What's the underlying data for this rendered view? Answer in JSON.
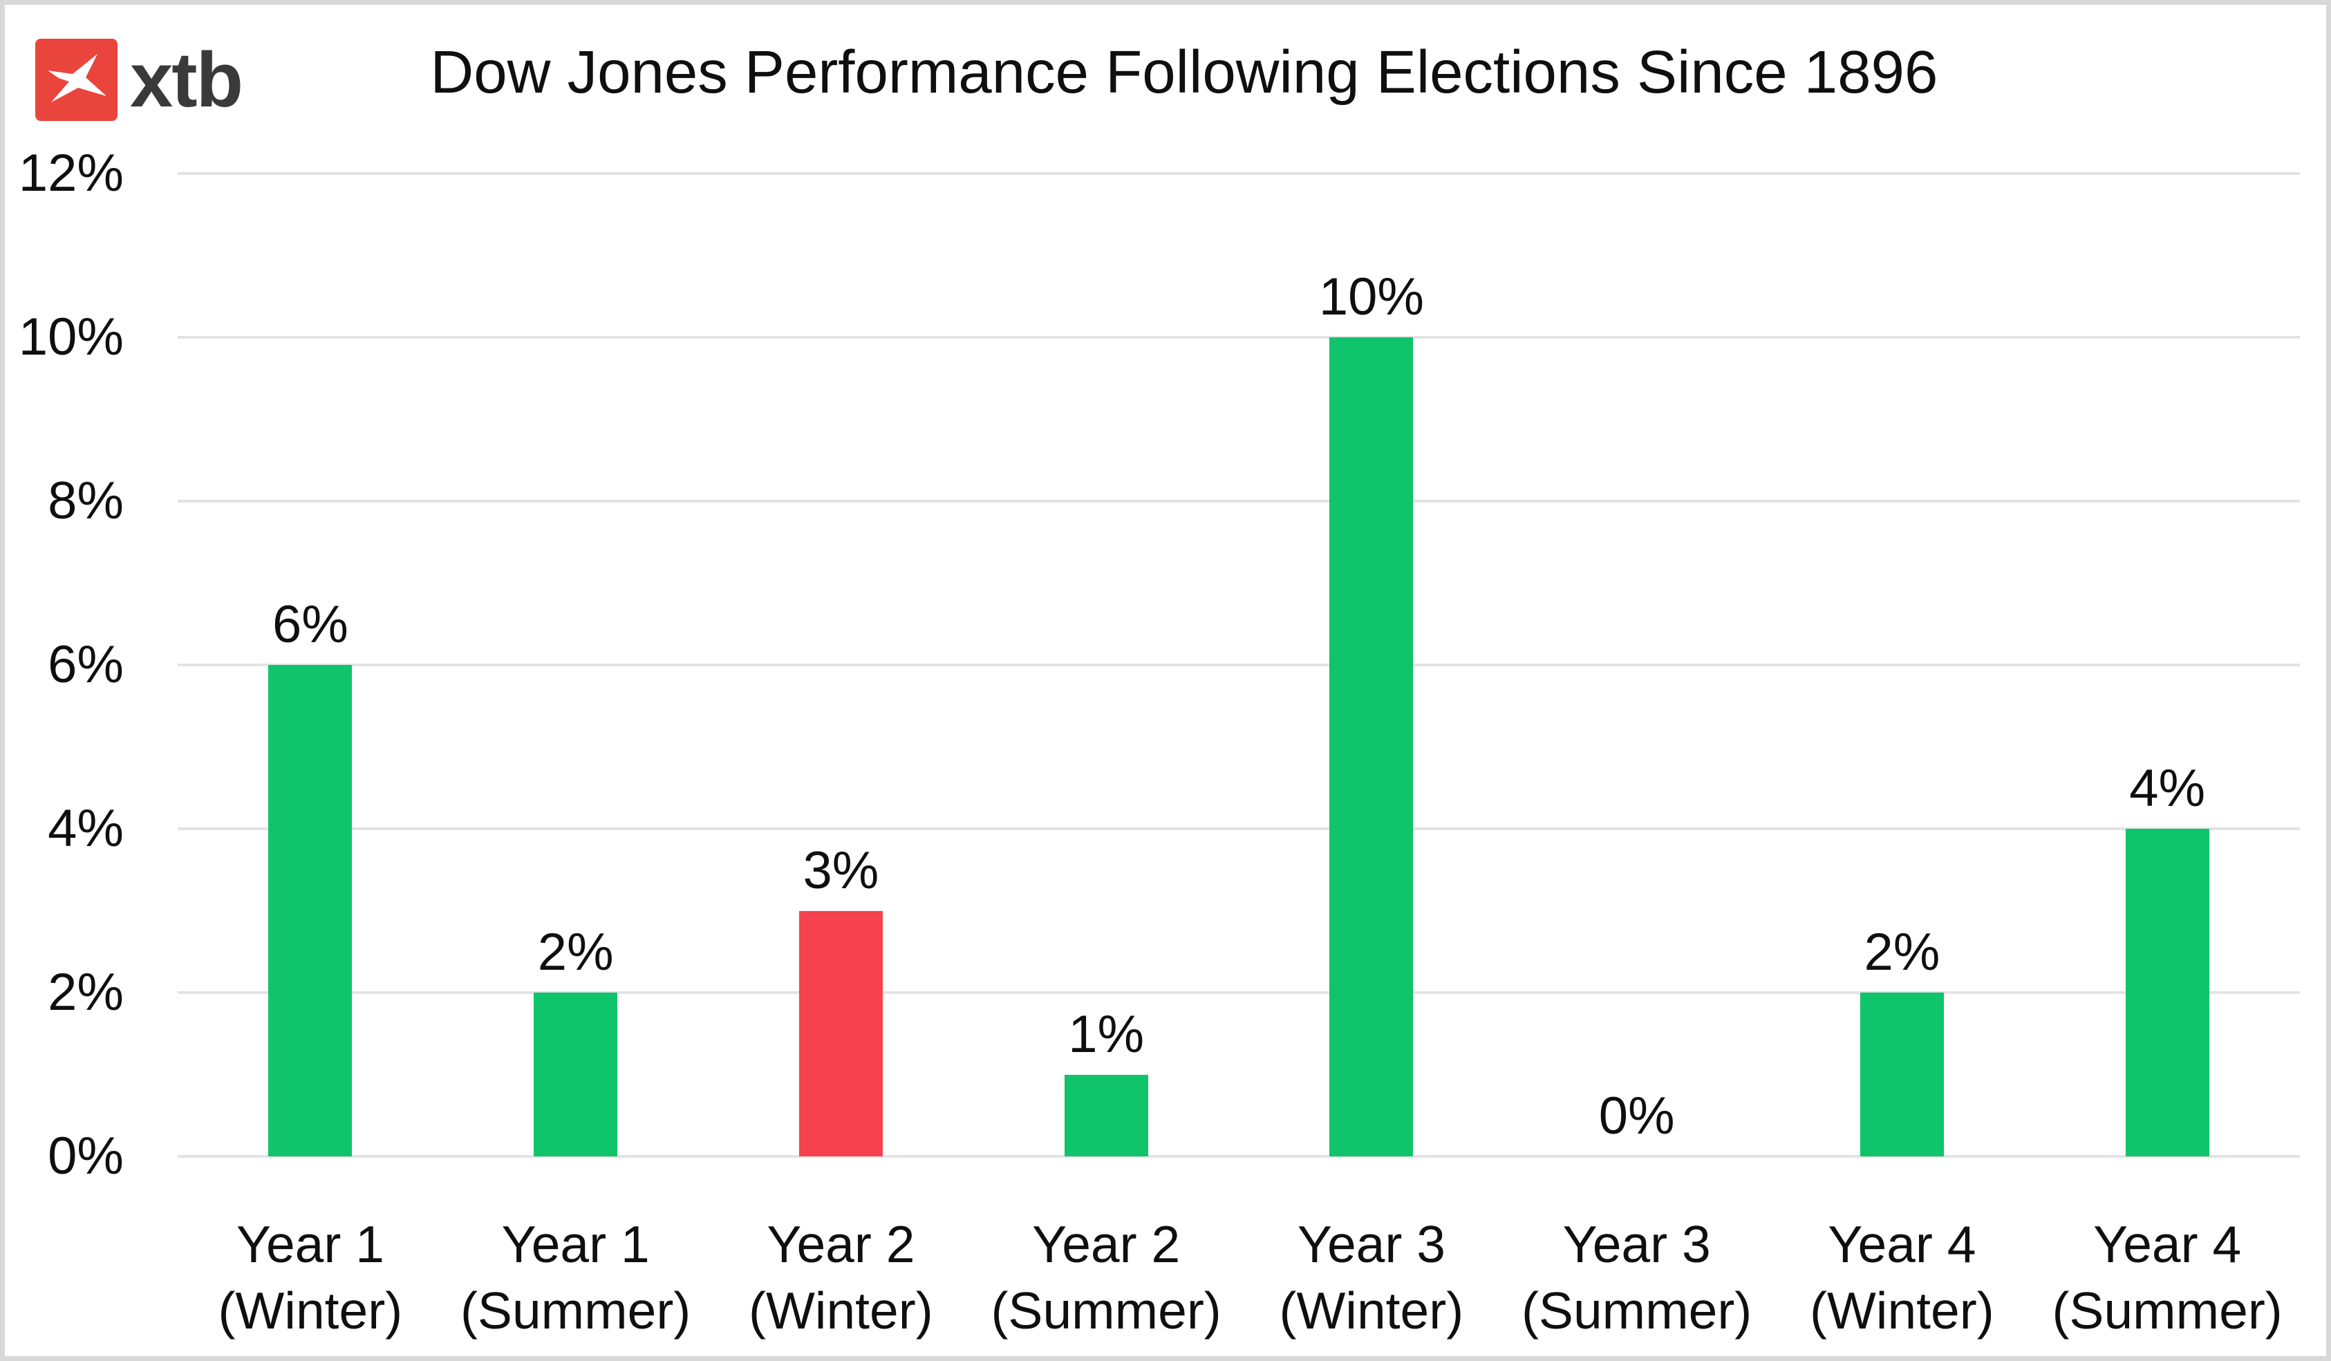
{
  "header": {
    "logo_text": "xtb",
    "logo_icon": "xtb-x-star-icon",
    "logo_square_color": "#E9453D",
    "logo_text_color": "#3A3A3A"
  },
  "chart_data": {
    "type": "bar",
    "title": "Dow Jones Performance Following Elections Since 1896",
    "categories": [
      [
        "Year 1",
        "(Winter)"
      ],
      [
        "Year 1",
        "(Summer)"
      ],
      [
        "Year 2",
        "(Winter)"
      ],
      [
        "Year 2",
        "(Summer)"
      ],
      [
        "Year 3",
        "(Winter)"
      ],
      [
        "Year 3",
        "(Summer)"
      ],
      [
        "Year 4",
        "(Winter)"
      ],
      [
        "Year 4",
        "(Summer)"
      ]
    ],
    "values": [
      6,
      2,
      3,
      1,
      10,
      0,
      2,
      4
    ],
    "data_labels": [
      "6%",
      "2%",
      "3%",
      "1%",
      "10%",
      "0%",
      "2%",
      "4%"
    ],
    "bar_colors": [
      "#0FC46A",
      "#0FC46A",
      "#F6414F",
      "#0FC46A",
      "#0FC46A",
      "#0FC46A",
      "#0FC46A",
      "#0FC46A"
    ],
    "y_ticks": [
      {
        "label": "12%",
        "value": 12
      },
      {
        "label": "10%",
        "value": 10
      },
      {
        "label": "8%",
        "value": 8
      },
      {
        "label": "6%",
        "value": 6
      },
      {
        "label": "4%",
        "value": 4
      },
      {
        "label": "2%",
        "value": 2
      },
      {
        "label": "0%",
        "value": 0
      }
    ],
    "ylim": [
      0,
      12
    ],
    "xlabel": "",
    "ylabel": "",
    "grid": true,
    "legend": "none",
    "colors": {
      "positive": "#0FC46A",
      "negative": "#F6414F",
      "gridline": "#E3E3E3",
      "text": "#0F0F0F"
    }
  }
}
